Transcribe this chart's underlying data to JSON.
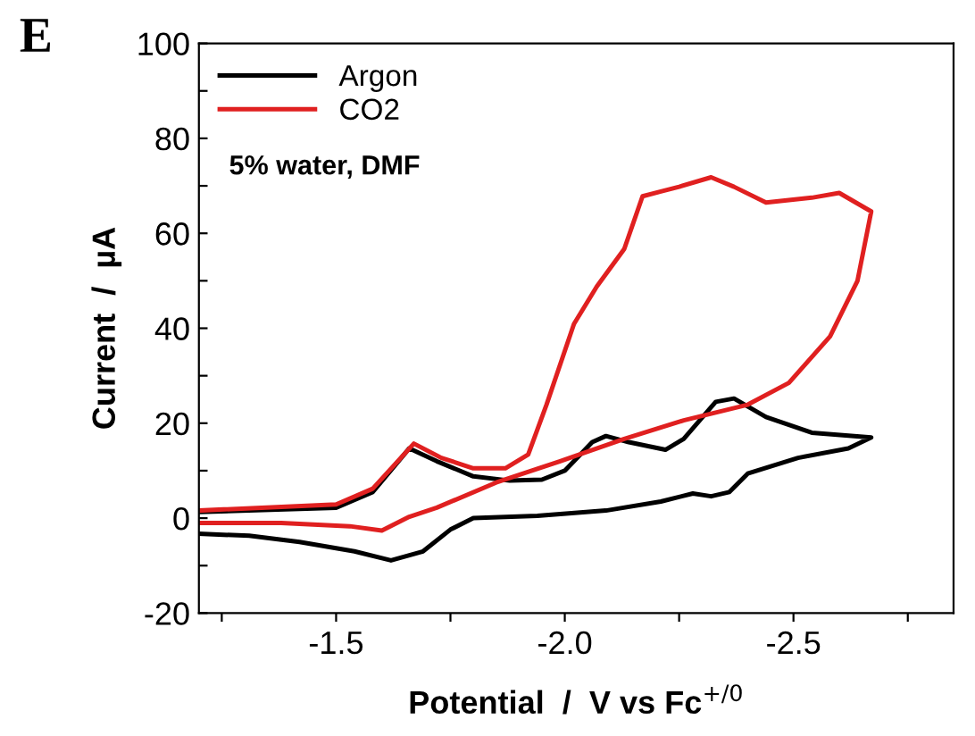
{
  "chart_data": {
    "type": "line",
    "xlabel": "Potential  /  V vs Fc$^{+/0}$",
    "ylabel": "Current  /  µA",
    "annotations": [
      "E",
      "5% water, DMF"
    ],
    "xlim": [
      -1.2,
      -2.85
    ],
    "xticks": [
      {
        "value": -1.25,
        "label": null
      },
      -1.5,
      {
        "value": -1.75,
        "label": null
      },
      {
        "value": -2.0,
        "label": "-2.0"
      },
      {
        "value": -2.25,
        "label": null
      },
      -2.5,
      {
        "value": -2.75,
        "label": null
      }
    ],
    "ylim": [
      -20,
      100
    ],
    "yticks": [
      -20,
      {
        "value": -10,
        "label": null
      },
      0,
      {
        "value": 10,
        "label": null
      },
      20,
      {
        "value": 30,
        "label": null
      },
      40,
      {
        "value": 50,
        "label": null
      },
      60,
      {
        "value": 70,
        "label": null
      },
      80,
      {
        "value": 90,
        "label": null
      },
      100
    ],
    "grid": false,
    "legend": "top left",
    "marker": "none",
    "line_style": "solid",
    "series": [
      {
        "name": "Argon",
        "color": "#000000",
        "x": [
          -1.2,
          -1.5,
          -1.58,
          -1.66,
          -1.72,
          -1.8,
          -1.88,
          -1.95,
          -2.0,
          -2.06,
          -2.09,
          -2.14,
          -2.22,
          -2.26,
          -2.33,
          -2.37,
          -2.44,
          -2.54,
          -2.67,
          -2.62,
          -2.51,
          -2.4,
          -2.36,
          -2.32,
          -2.28,
          -2.21,
          -2.09,
          -1.94,
          -1.8,
          -1.75,
          -1.69,
          -1.62,
          -1.54,
          -1.42,
          -1.31,
          -1.2
        ],
        "values": [
          1.3,
          2.2,
          5.5,
          14.7,
          12,
          8.8,
          7.9,
          8.1,
          10,
          16,
          17.3,
          16,
          14.4,
          16.7,
          24.5,
          25.2,
          21.3,
          18,
          17,
          14.7,
          12.7,
          9.4,
          5.5,
          4.6,
          5.2,
          3.5,
          1.6,
          0.5,
          0,
          -2.4,
          -7,
          -8.9,
          -7,
          -5,
          -3.7,
          -3.3
        ]
      },
      {
        "name": "CO2",
        "color": "#e02020",
        "x": [
          -1.2,
          -1.5,
          -1.58,
          -1.67,
          -1.73,
          -1.8,
          -1.87,
          -1.92,
          -1.96,
          -2.02,
          -2.07,
          -2.13,
          -2.17,
          -2.21,
          -2.25,
          -2.32,
          -2.37,
          -2.44,
          -2.54,
          -2.6,
          -2.67,
          -2.64,
          -2.58,
          -2.49,
          -2.4,
          -2.26,
          -2.13,
          -1.99,
          -1.85,
          -1.72,
          -1.66,
          -1.6,
          -1.53,
          -1.38,
          -1.2
        ],
        "values": [
          1.6,
          2.9,
          6.2,
          15.7,
          12.7,
          10.5,
          10.5,
          13.4,
          23.9,
          40.9,
          48.8,
          56.7,
          67.8,
          68.8,
          69.8,
          71.8,
          69.8,
          66.5,
          67.5,
          68.5,
          64.6,
          50,
          38.3,
          28.5,
          23.9,
          20.6,
          16.7,
          12,
          7.5,
          2.2,
          0.3,
          -2.6,
          -1.7,
          -1.0,
          -1.0
        ]
      }
    ]
  }
}
